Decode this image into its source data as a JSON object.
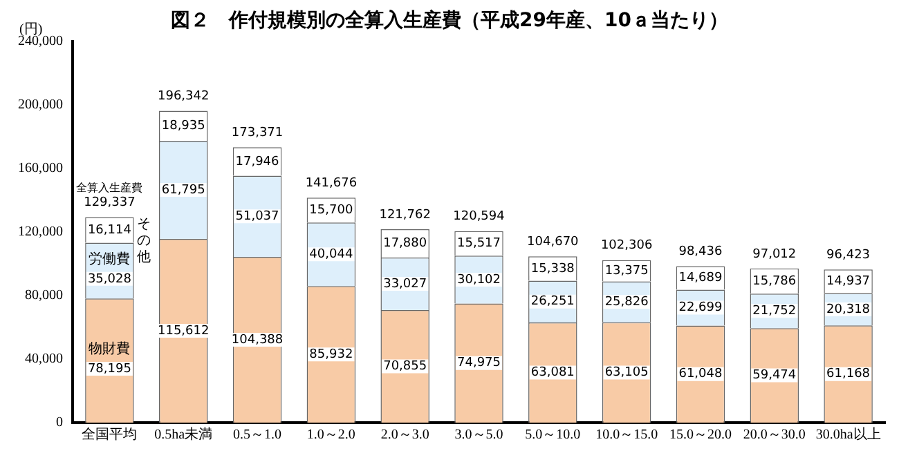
{
  "chart_data": {
    "type": "bar",
    "title": "図２　作付規模別の全算入生産費（平成29年産、10ａ当たり）",
    "ylabel": "(円)",
    "categories": [
      "全国平均",
      "0.5ha未満",
      "0.5～1.0",
      "1.0～2.0",
      "2.0～3.0",
      "3.0～5.0",
      "5.0～10.0",
      "10.0～15.0",
      "15.0～20.0",
      "20.0～30.0",
      "30.0ha以上"
    ],
    "stacked": true,
    "series": [
      {
        "name": "物財費",
        "color": "#f8cba6",
        "values": [
          78195,
          115612,
          104388,
          85932,
          70855,
          74975,
          63081,
          63105,
          61048,
          59474,
          61168
        ],
        "value_labels": [
          "78,195",
          "115,612",
          "104,388",
          "85,932",
          "70,855",
          "74,975",
          "63,081",
          "63,105",
          "61,048",
          "59,474",
          "61,168"
        ]
      },
      {
        "name": "労働費",
        "color": "#deeffb",
        "values": [
          35028,
          61795,
          51037,
          40044,
          33027,
          30102,
          26251,
          25826,
          22699,
          21752,
          20318
        ],
        "value_labels": [
          "35,028",
          "61,795",
          "51,037",
          "40,044",
          "33,027",
          "30,102",
          "26,251",
          "25,826",
          "22,699",
          "21,752",
          "20,318"
        ]
      },
      {
        "name": "その他",
        "color": "#ffffff",
        "values": [
          16114,
          18935,
          17946,
          15700,
          17880,
          15517,
          15338,
          13375,
          14689,
          15786,
          14937
        ],
        "value_labels": [
          "16,114",
          "18,935",
          "17,946",
          "15,700",
          "17,880",
          "15,517",
          "15,338",
          "13,375",
          "14,689",
          "15,786",
          "14,937"
        ]
      }
    ],
    "totals": [
      "129,337",
      "196,342",
      "173,371",
      "141,676",
      "121,762",
      "120,594",
      "104,670",
      "102,306",
      "98,436",
      "97,012",
      "96,423"
    ],
    "annotations": [
      {
        "text": "全算入生産費",
        "x": "全国平均",
        "y": 129337
      }
    ],
    "grid": false,
    "ylim": [
      0,
      240000
    ],
    "yticks": [
      {
        "value": 0,
        "label": "0"
      },
      {
        "value": 40000,
        "label": "40,000"
      },
      {
        "value": 80000,
        "label": "80,000"
      },
      {
        "value": 120000,
        "label": "120,000"
      },
      {
        "value": 160000,
        "label": "160,000"
      },
      {
        "value": 200000,
        "label": "200,000"
      },
      {
        "value": 240000,
        "label": "240,000"
      }
    ]
  }
}
